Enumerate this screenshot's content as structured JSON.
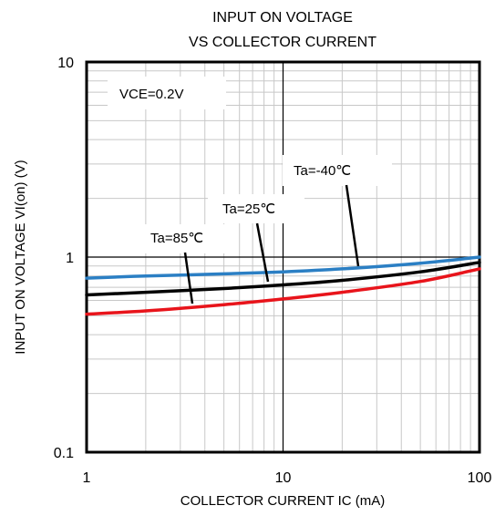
{
  "chart_data": {
    "type": "line",
    "title_line1": "INPUT ON VOLTAGE",
    "title_line2": "VS COLLECTOR CURRENT",
    "xlabel": "COLLECTOR CURRENT IC (mA)",
    "ylabel": "INPUT ON VOLTAGE VI(on) (V)",
    "xscale": "log",
    "yscale": "log",
    "xlim": [
      1,
      100
    ],
    "ylim": [
      0.1,
      10
    ],
    "x_ticks": [
      1,
      10,
      100
    ],
    "x_tick_labels": [
      "1",
      "10",
      "100"
    ],
    "y_ticks": [
      0.1,
      1,
      10
    ],
    "y_tick_labels": [
      "0.1",
      "1",
      "10"
    ],
    "grid": true,
    "condition_label": "VCE=0.2V",
    "series": [
      {
        "name": "Ta=-40℃",
        "color": "#2b7fc4",
        "x": [
          1,
          2,
          5,
          10,
          20,
          50,
          100
        ],
        "y": [
          0.78,
          0.8,
          0.82,
          0.84,
          0.87,
          0.93,
          1.0
        ]
      },
      {
        "name": "Ta=25℃",
        "color": "#000000",
        "x": [
          1,
          2,
          5,
          10,
          20,
          50,
          100
        ],
        "y": [
          0.64,
          0.66,
          0.69,
          0.72,
          0.76,
          0.84,
          0.94
        ]
      },
      {
        "name": "Ta=85℃",
        "color": "#e8141b",
        "x": [
          1,
          2,
          5,
          10,
          20,
          50,
          100
        ],
        "y": [
          0.51,
          0.53,
          0.57,
          0.61,
          0.66,
          0.75,
          0.87
        ]
      }
    ]
  }
}
